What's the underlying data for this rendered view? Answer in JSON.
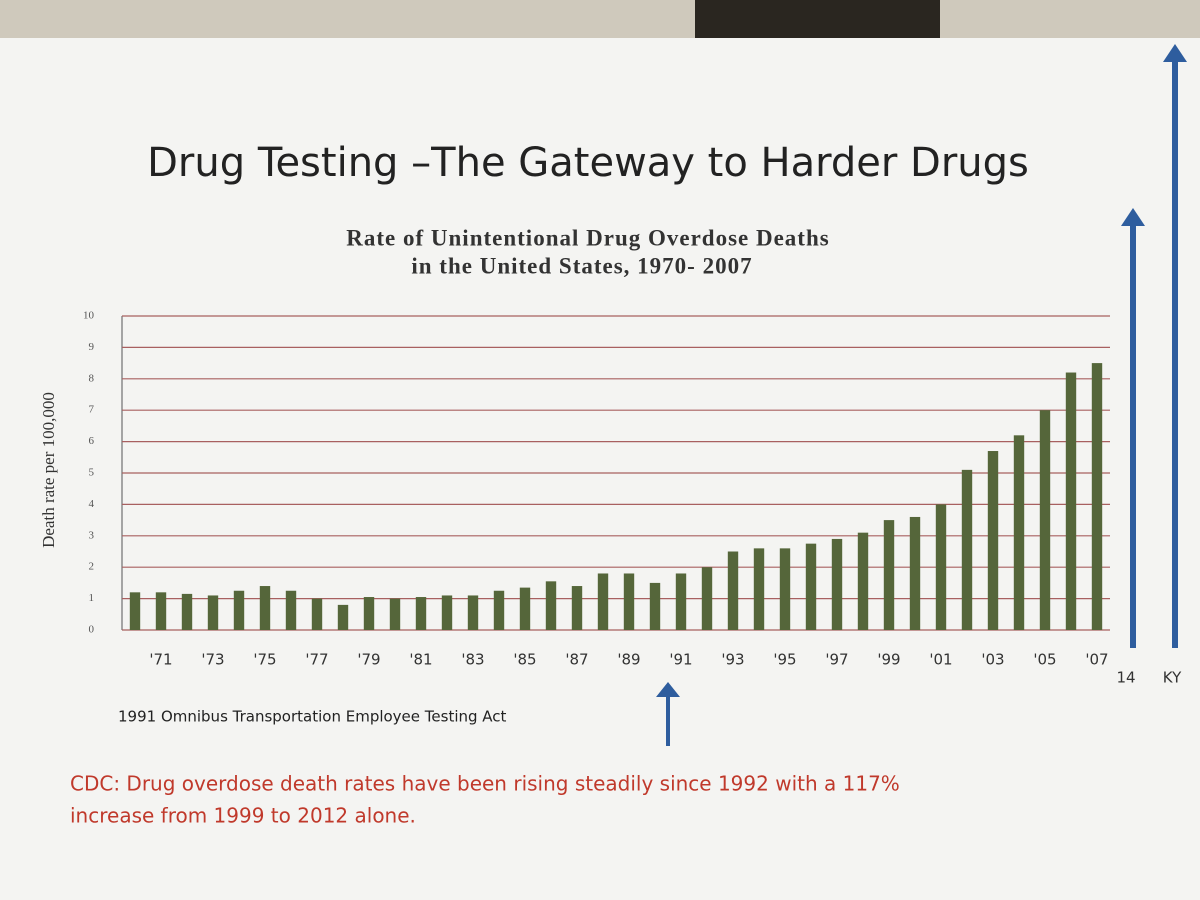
{
  "slide_title": "Drug Testing –The Gateway to Harder Drugs",
  "chart_data": {
    "type": "bar",
    "title": [
      "Rate of Unintentional Drug Overdose Deaths",
      "in the United States, 1970- 2007"
    ],
    "y_label": "Death rate per 100,000",
    "categories": [
      null,
      "'71",
      null,
      "'73",
      null,
      "'75",
      null,
      "'77",
      null,
      "'79",
      null,
      "'81",
      null,
      "'83",
      null,
      "'85",
      null,
      "'87",
      null,
      "'89",
      null,
      "'91",
      null,
      "'93",
      null,
      "'95",
      null,
      "'97",
      null,
      "'99",
      null,
      "'01",
      null,
      "'03",
      null,
      "'05",
      null,
      "'07"
    ],
    "values": [
      1.2,
      1.2,
      1.15,
      1.1,
      1.25,
      1.4,
      1.25,
      1.0,
      0.8,
      1.05,
      1.0,
      1.05,
      1.1,
      1.1,
      1.25,
      1.35,
      1.55,
      1.4,
      1.8,
      1.8,
      1.5,
      1.8,
      2.0,
      2.5,
      2.6,
      2.6,
      2.75,
      2.9,
      3.1,
      3.5,
      3.6,
      4.0,
      5.1,
      5.7,
      6.2,
      7.0,
      8.2,
      8.5
    ],
    "color": "#55663a",
    "grid_color": "#a86060",
    "ylim": [
      0,
      10
    ],
    "yticks": [
      0,
      1,
      2,
      3,
      4,
      5,
      6,
      7,
      8,
      9,
      10
    ],
    "grid": true,
    "extra_labels": [
      "14",
      "KY"
    ],
    "annotation": "1991 Omnibus Transportation Employee Testing Act"
  },
  "footnote": [
    "CDC: Drug overdose death rates have been rising steadily since 1992 with a 117%",
    "increase from 1999 to 2012 alone."
  ]
}
